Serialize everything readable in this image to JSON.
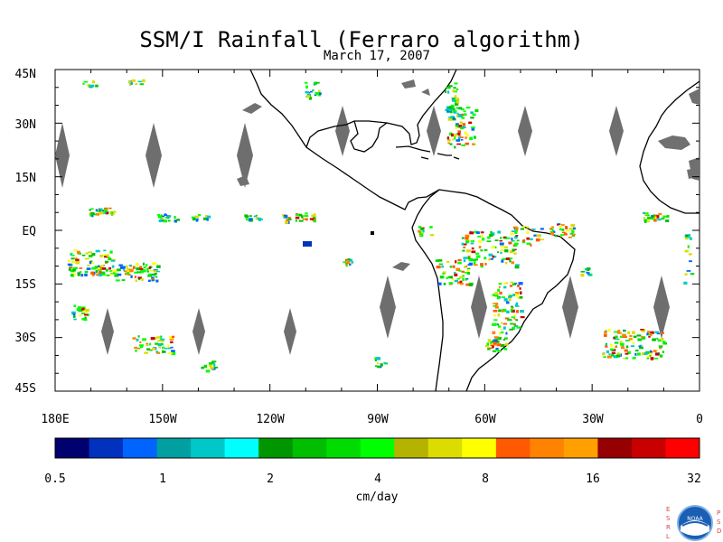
{
  "title": "SSM/I Rainfall (Ferraro algorithm)",
  "subtitle": "March 17, 2007",
  "lat_labels": [
    "45N",
    "30N",
    "15N",
    "EQ",
    "15S",
    "30S",
    "45S"
  ],
  "lon_labels": [
    "180E",
    "150W",
    "120W",
    "90W",
    "60W",
    "30W",
    "0"
  ],
  "colorbar": {
    "colors": [
      "#00006e",
      "#0032be",
      "#0064ff",
      "#00a0a0",
      "#00c8c8",
      "#00ffff",
      "#009600",
      "#00be00",
      "#00dc00",
      "#00ff00",
      "#b4b400",
      "#dcdc00",
      "#ffff00",
      "#ff5a00",
      "#ff8200",
      "#ffa000",
      "#960000",
      "#c80000",
      "#ff0000"
    ],
    "tick_labels": [
      "0.5",
      "1",
      "2",
      "4",
      "8",
      "16",
      "32"
    ],
    "unit_label": "cm/day"
  },
  "logo": {
    "letters_left": [
      "E",
      "S",
      "R",
      "L"
    ],
    "letters_right": [
      "P",
      "S",
      "D"
    ],
    "badge": "NOAA"
  }
}
